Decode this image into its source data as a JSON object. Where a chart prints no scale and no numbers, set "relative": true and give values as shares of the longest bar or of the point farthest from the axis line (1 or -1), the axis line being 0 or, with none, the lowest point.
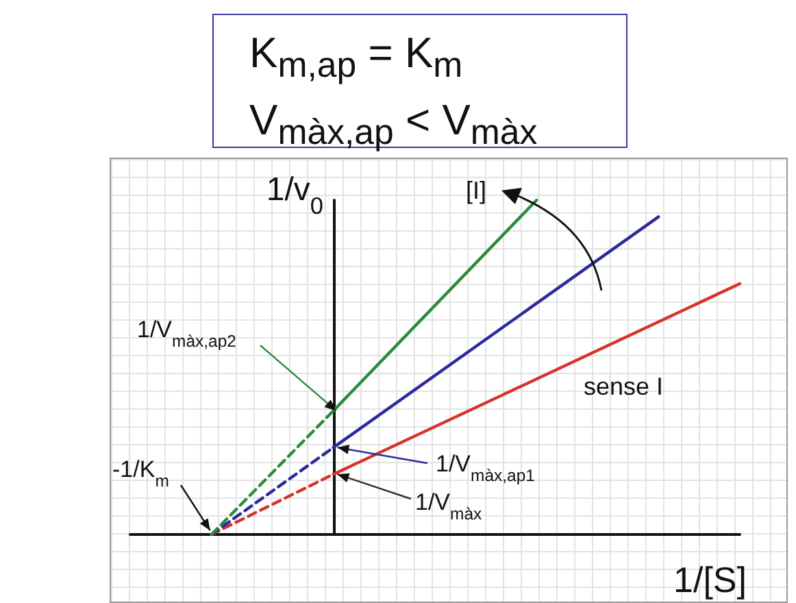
{
  "chart_data": {
    "type": "line",
    "title": "K$_{m,ap}$ = K$_{m}$",
    "subtitle": "V$_{màx,ap}$ < V$_{màx}$",
    "xlabel": "1/[S]",
    "ylabel": "1/v$_{0}$",
    "relative": true,
    "marker": "none",
    "categories": [
      null,
      null,
      null,
      null,
      null,
      null,
      null,
      null,
      null,
      null,
      null,
      null,
      null,
      null,
      null,
      null
    ],
    "series": [
      {
        "color": "#d6332a",
        "line_style": "dashed",
        "values": [
          null,
          null,
          0,
          null,
          null,
          0.18,
          null,
          null,
          null,
          null,
          null,
          null,
          null,
          null,
          null,
          null
        ]
      },
      {
        "color": "#d6332a",
        "line_style": "solid",
        "values": [
          null,
          null,
          null,
          null,
          null,
          0.18,
          null,
          null,
          null,
          null,
          null,
          null,
          null,
          null,
          null,
          0.75
        ]
      },
      {
        "color": "#2b2b9a",
        "line_style": "dashed",
        "values": [
          null,
          null,
          0,
          null,
          null,
          0.26,
          null,
          null,
          null,
          null,
          null,
          null,
          null,
          null,
          null,
          null
        ]
      },
      {
        "color": "#2b2b9a",
        "line_style": "solid",
        "values": [
          null,
          null,
          null,
          null,
          null,
          0.26,
          null,
          null,
          null,
          null,
          null,
          null,
          null,
          0.95,
          null,
          null
        ]
      },
      {
        "color": "#2a8a3e",
        "line_style": "dashed",
        "values": [
          null,
          null,
          0,
          null,
          null,
          0.37,
          null,
          null,
          null,
          null,
          null,
          null,
          null,
          null,
          null,
          null
        ]
      },
      {
        "color": "#2a8a3e",
        "line_style": "solid",
        "values": [
          null,
          null,
          null,
          null,
          null,
          0.37,
          null,
          null,
          null,
          null,
          1,
          null,
          null,
          null,
          null,
          null
        ]
      }
    ],
    "annotations": [
      "1/V$_{màx,ap2}$",
      "1/V$_{màx,ap1}$",
      "1/V$_{màx}$",
      "-1/K$_{m}$",
      "[I]",
      "sense I"
    ]
  }
}
